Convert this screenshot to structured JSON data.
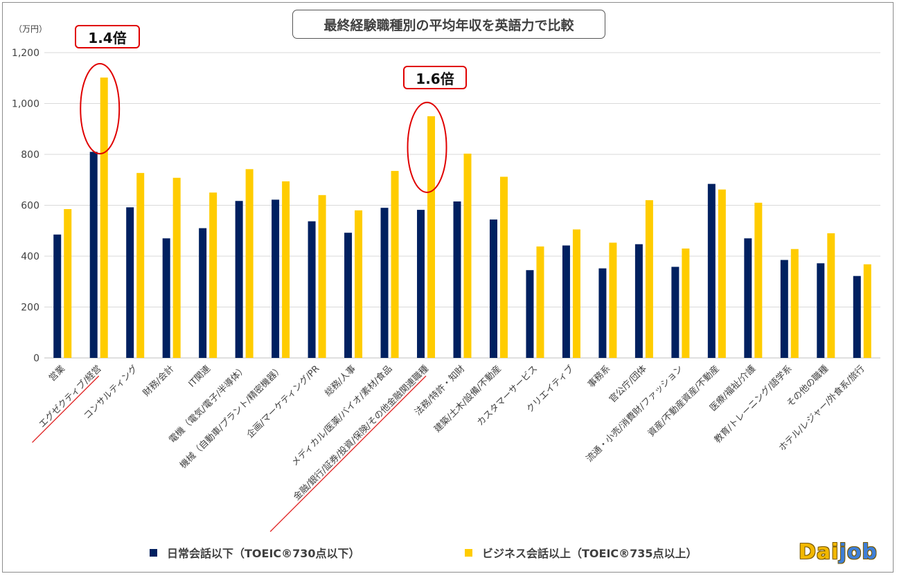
{
  "chart_data": {
    "type": "bar",
    "title": "最終経験職種別の平均年収を英語力で比較",
    "unit_label": "（万円）",
    "ylim": [
      0,
      1200
    ],
    "yticks": [
      "0",
      "200",
      "400",
      "600",
      "800",
      "1,000",
      "1,200"
    ],
    "grid": true,
    "legend_position": "bottom",
    "categories": [
      "営業",
      "エグゼクティブ/経営",
      "コンサルティング",
      "財務/会計",
      "IT関連",
      "電機（電気/電子/半導体）",
      "機械（自動車/プラント/精密機器）",
      "企画/マーケティング/PR",
      "総務/人事",
      "メディカル/医薬/バイオ/素材/食品",
      "金融/銀行/証券/投資/保険/その他金融関連職種",
      "法務/特許・知財",
      "建築/土木/設備/不動産",
      "カスタマーサービス",
      "クリエイティブ",
      "事務系",
      "官公庁/団体",
      "流通・小売/消費財/ファッション",
      "資産/不動産資産/不動産",
      "医療/福祉/介護",
      "教育/トレーニング/語学系",
      "その他の職種",
      "ホテル/レジャー/外食系/旅行"
    ],
    "series": [
      {
        "name": "日常会話以下（TOEIC®730点以下）",
        "color": "#002060",
        "values": [
          485,
          810,
          592,
          470,
          510,
          617,
          622,
          537,
          492,
          590,
          582,
          615,
          544,
          345,
          442,
          352,
          447,
          358,
          684,
          470,
          385,
          372,
          322
        ]
      },
      {
        "name": "ビジネス会話以上（TOEIC®735点以上）",
        "color": "#ffcc00",
        "values": [
          585,
          1102,
          727,
          708,
          650,
          742,
          694,
          640,
          580,
          735,
          950,
          803,
          712,
          438,
          505,
          453,
          620,
          430,
          662,
          610,
          428,
          490,
          368
        ]
      }
    ],
    "annotations": [
      {
        "text": "1.4倍",
        "category_index": 1
      },
      {
        "text": "1.6倍",
        "category_index": 10
      }
    ],
    "underlined_categories": [
      1,
      10
    ]
  },
  "logo": {
    "text_a": "Dai",
    "text_b": "job"
  }
}
